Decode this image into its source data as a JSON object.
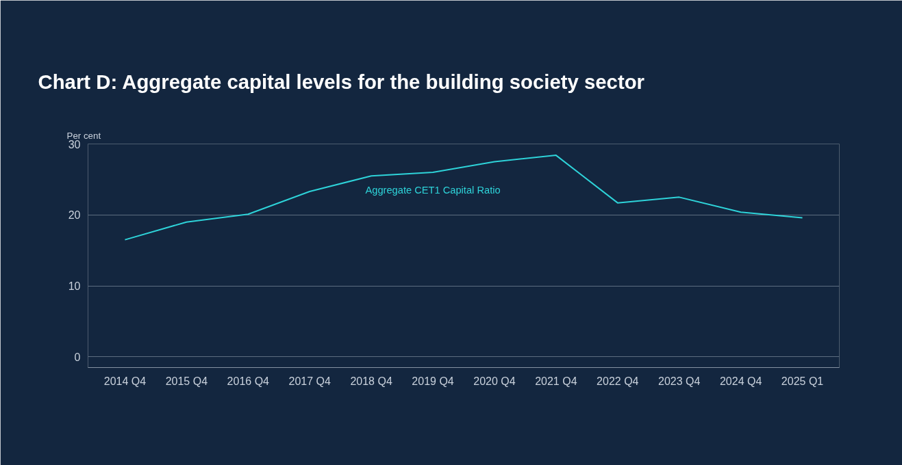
{
  "chart_data": {
    "type": "line",
    "title": "Chart D: Aggregate capital levels for the building society sector",
    "ylabel": "Per cent",
    "categories": [
      "2014 Q4",
      "2015 Q4",
      "2016 Q4",
      "2017 Q4",
      "2018 Q4",
      "2019 Q4",
      "2020 Q4",
      "2021 Q4",
      "2022 Q4",
      "2023 Q4",
      "2024 Q4",
      "2025 Q1"
    ],
    "series": [
      {
        "name": "Aggregate CET1 Capital Ratio",
        "color": "#2ed3d9",
        "values": [
          16.5,
          19.0,
          20.1,
          23.3,
          25.5,
          26.0,
          27.5,
          28.4,
          21.7,
          22.5,
          20.4,
          19.6
        ]
      }
    ],
    "ylim": [
      -1.5,
      30
    ],
    "yticks": [
      0,
      10,
      20,
      30
    ],
    "grid": "y",
    "legend": false,
    "marker": "none",
    "line_style": "solid"
  }
}
